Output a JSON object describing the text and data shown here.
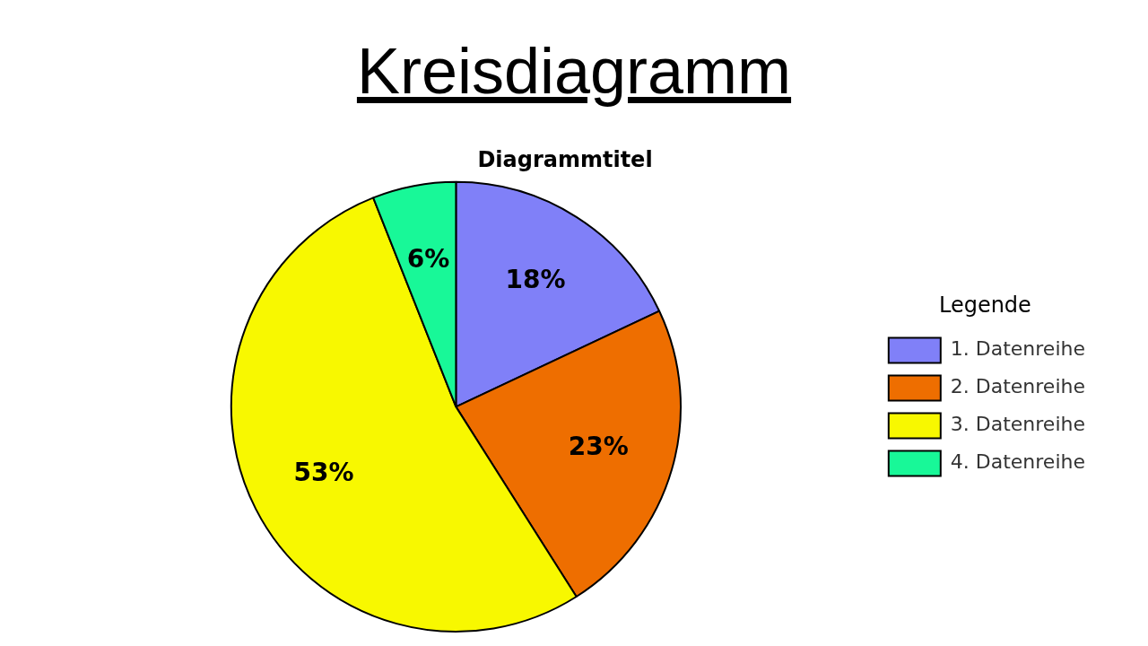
{
  "chart_data": {
    "type": "pie",
    "title": "Kreisdiagramm",
    "subtitle": "Diagrammtitel",
    "legend_title": "Legende",
    "legend": "right",
    "categories": [
      "1. Datenreihe",
      "2. Datenreihe",
      "3. Datenreihe",
      "4. Datenreihe"
    ],
    "values": [
      18,
      23,
      53,
      6
    ],
    "value_labels": [
      "18%",
      "23%",
      "53%",
      "6%"
    ],
    "colors": [
      "#8080f8",
      "#ee6e00",
      "#f8f800",
      "#18f898"
    ]
  }
}
